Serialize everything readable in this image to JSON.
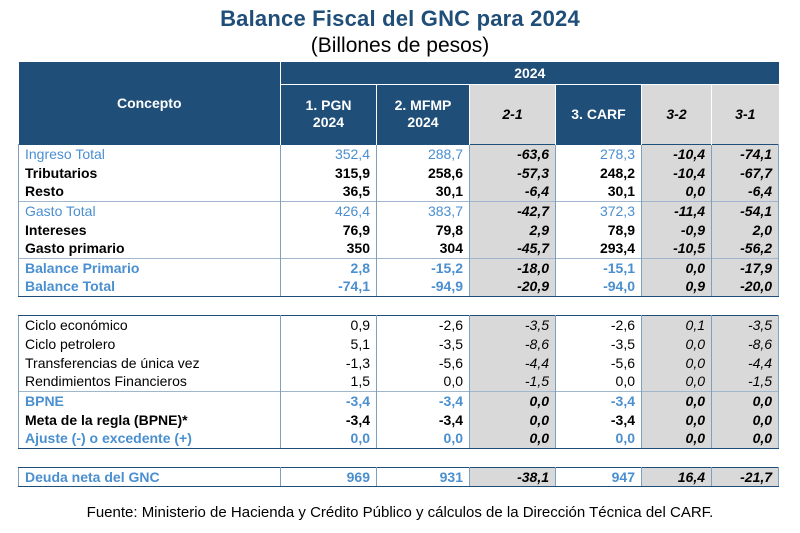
{
  "title": "Balance Fiscal del GNC para 2024",
  "subtitle": "(Billones de pesos)",
  "header": {
    "concept": "Concepto",
    "year": "2024",
    "columns": [
      {
        "l1": "1. PGN",
        "l2": "2024"
      },
      {
        "l1": "2. MFMP",
        "l2": "2024"
      },
      {
        "l1": "2-1",
        "l2": ""
      },
      {
        "l1": "3. CARF",
        "l2": ""
      },
      {
        "l1": "3-2",
        "l2": ""
      },
      {
        "l1": "3-1",
        "l2": ""
      }
    ]
  },
  "section1": [
    {
      "label": "Ingreso Total",
      "values": [
        "352,4",
        "288,7",
        "-63,6",
        "278,3",
        "-10,4",
        "-74,1"
      ]
    },
    {
      "label": "Tributarios",
      "values": [
        "315,9",
        "258,6",
        "-57,3",
        "248,2",
        "-10,4",
        "-67,7"
      ]
    },
    {
      "label": "Resto",
      "values": [
        "36,5",
        "30,1",
        "-6,4",
        "30,1",
        "0,0",
        "-6,4"
      ]
    },
    {
      "label": "Gasto Total",
      "values": [
        "426,4",
        "383,7",
        "-42,7",
        "372,3",
        "-11,4",
        "-54,1"
      ]
    },
    {
      "label": "Intereses",
      "values": [
        "76,9",
        "79,8",
        "2,9",
        "78,9",
        "-0,9",
        "2,0"
      ]
    },
    {
      "label": "Gasto primario",
      "values": [
        "350",
        "304",
        "-45,7",
        "293,4",
        "-10,5",
        "-56,2"
      ]
    },
    {
      "label": "Balance Primario",
      "values": [
        "2,8",
        "-15,2",
        "-18,0",
        "-15,1",
        "0,0",
        "-17,9"
      ]
    },
    {
      "label": "Balance Total",
      "values": [
        "-74,1",
        "-94,9",
        "-20,9",
        "-94,0",
        "0,9",
        "-20,0"
      ]
    }
  ],
  "section2": [
    {
      "label": "Ciclo económico",
      "values": [
        "0,9",
        "-2,6",
        "-3,5",
        "-2,6",
        "0,1",
        "-3,5"
      ]
    },
    {
      "label": "Ciclo petrolero",
      "values": [
        "5,1",
        "-3,5",
        "-8,6",
        "-3,5",
        "0,0",
        "-8,6"
      ]
    },
    {
      "label": "Transferencias de única vez",
      "values": [
        "-1,3",
        "-5,6",
        "-4,4",
        "-5,6",
        "0,0",
        "-4,4"
      ]
    },
    {
      "label": "Rendimientos Financieros",
      "values": [
        "1,5",
        "0,0",
        "-1,5",
        "0,0",
        "0,0",
        "-1,5"
      ]
    },
    {
      "label": "BPNE",
      "values": [
        "-3,4",
        "-3,4",
        "0,0",
        "-3,4",
        "0,0",
        "0,0"
      ]
    },
    {
      "label": "Meta de la regla (BPNE)*",
      "values": [
        "-3,4",
        "-3,4",
        "0,0",
        "-3,4",
        "0,0",
        "0,0"
      ]
    },
    {
      "label": "Ajuste (-) o excedente (+)",
      "values": [
        "0,0",
        "0,0",
        "0,0",
        "0,0",
        "0,0",
        "0,0"
      ]
    }
  ],
  "section3": [
    {
      "label": "Deuda neta del GNC",
      "values": [
        "969",
        "931",
        "-38,1",
        "947",
        "16,4",
        "-21,7"
      ]
    }
  ],
  "footer": "Fuente: Ministerio de Hacienda y Crédito Público y cálculos de la Dirección Técnica del CARF.",
  "colors": {
    "header_bg": "#1f4e79",
    "accent_blue": "#4a8fd0",
    "diff_bg": "#d9d9d9"
  }
}
